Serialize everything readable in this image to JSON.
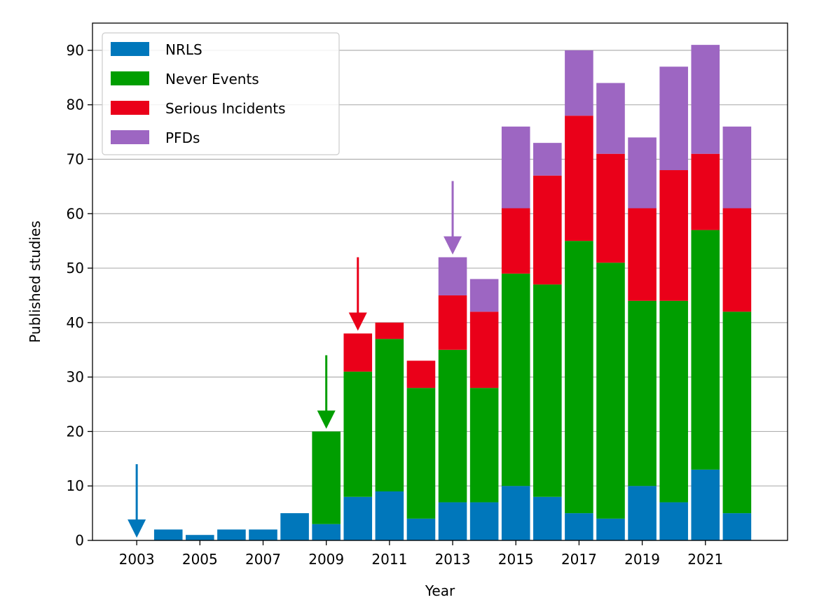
{
  "chart_data": {
    "type": "bar",
    "stacked": true,
    "title": "",
    "xlabel": "Year",
    "ylabel": "Published studies",
    "ylim": [
      0,
      95
    ],
    "xlim": [
      2001.6,
      2023.6
    ],
    "grid": "y",
    "legend_position": "top-left",
    "categories": [
      2003,
      2004,
      2005,
      2006,
      2007,
      2008,
      2009,
      2010,
      2011,
      2012,
      2013,
      2014,
      2015,
      2016,
      2017,
      2018,
      2019,
      2020,
      2021,
      2022
    ],
    "x_ticks": [
      "2003",
      "2005",
      "2007",
      "2009",
      "2011",
      "2013",
      "2015",
      "2017",
      "2019",
      "2021"
    ],
    "y_ticks": [
      "0",
      "10",
      "20",
      "30",
      "40",
      "50",
      "60",
      "70",
      "80",
      "90"
    ],
    "series": [
      {
        "name": "NRLS",
        "color": "#0077bb",
        "values": [
          0,
          2,
          1,
          2,
          2,
          5,
          3,
          8,
          9,
          4,
          7,
          7,
          10,
          8,
          5,
          4,
          10,
          7,
          13,
          5
        ]
      },
      {
        "name": "Never Events",
        "color": "#009e00",
        "values": [
          0,
          0,
          0,
          0,
          0,
          0,
          17,
          23,
          28,
          24,
          28,
          21,
          39,
          39,
          50,
          47,
          34,
          37,
          44,
          37
        ]
      },
      {
        "name": "Serious Incidents",
        "color": "#ea0019",
        "values": [
          0,
          0,
          0,
          0,
          0,
          0,
          0,
          7,
          3,
          5,
          10,
          14,
          12,
          20,
          23,
          20,
          17,
          24,
          14,
          19
        ]
      },
      {
        "name": "PFDs",
        "color": "#9d66c2",
        "values": [
          0,
          0,
          0,
          0,
          0,
          0,
          0,
          0,
          0,
          0,
          7,
          6,
          15,
          6,
          12,
          13,
          13,
          19,
          20,
          15
        ]
      }
    ],
    "annotations": [
      {
        "type": "arrow",
        "x": 2003,
        "y_start": 14,
        "y_end": 0.5,
        "color": "#0077bb"
      },
      {
        "type": "arrow",
        "x": 2009,
        "y_start": 34,
        "y_end": 20.5,
        "color": "#009e00"
      },
      {
        "type": "arrow",
        "x": 2010,
        "y_start": 52,
        "y_end": 38.5,
        "color": "#ea0019"
      },
      {
        "type": "arrow",
        "x": 2013,
        "y_start": 66,
        "y_end": 52.5,
        "color": "#9d66c2"
      }
    ]
  }
}
